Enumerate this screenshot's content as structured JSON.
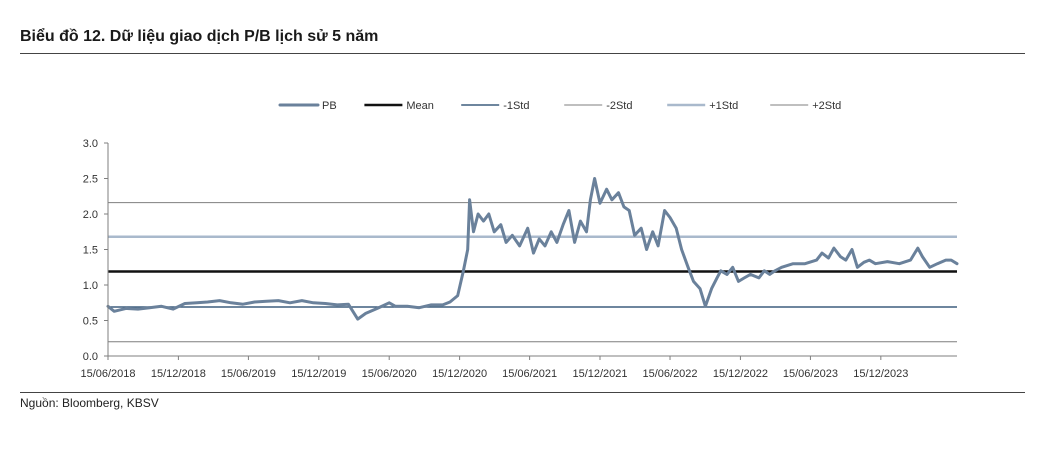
{
  "title": "Biểu đồ 12. Dữ liệu giao dịch P/B lịch sử 5 năm",
  "source": "Nguồn: Bloomberg, KBSV",
  "chart_data": {
    "type": "line",
    "title": "",
    "xlabel": "",
    "ylabel": "",
    "ylim": [
      0,
      3
    ],
    "yticks": [
      "0.0",
      "0.5",
      "1.0",
      "1.5",
      "2.0",
      "2.5",
      "3.0"
    ],
    "x_range": [
      "2018-06-15",
      "2024-06-30"
    ],
    "xticks": [
      "15/06/2018",
      "15/12/2018",
      "15/06/2019",
      "15/12/2019",
      "15/06/2020",
      "15/12/2020",
      "15/06/2021",
      "15/12/2021",
      "15/06/2022",
      "15/12/2022",
      "15/06/2023",
      "15/12/2023"
    ],
    "grid": false,
    "legend_position": "top",
    "legend": [
      "PB",
      "Mean",
      "-1Std",
      "-2Std",
      "+1Std",
      "+2Std"
    ],
    "series": [
      {
        "name": "PB",
        "color": "#6a819b",
        "x": [
          "2018-06-15",
          "2018-07-01",
          "2018-08-01",
          "2018-09-01",
          "2018-10-01",
          "2018-11-01",
          "2018-12-01",
          "2019-01-01",
          "2019-02-01",
          "2019-03-01",
          "2019-04-01",
          "2019-05-01",
          "2019-06-01",
          "2019-07-01",
          "2019-08-01",
          "2019-09-01",
          "2019-10-01",
          "2019-11-01",
          "2019-12-01",
          "2020-01-01",
          "2020-02-01",
          "2020-03-01",
          "2020-03-25",
          "2020-04-15",
          "2020-05-15",
          "2020-06-15",
          "2020-07-01",
          "2020-08-01",
          "2020-09-01",
          "2020-10-01",
          "2020-11-01",
          "2020-11-20",
          "2020-12-10",
          "2020-12-25",
          "2021-01-05",
          "2021-01-10",
          "2021-01-20",
          "2021-02-01",
          "2021-02-15",
          "2021-03-01",
          "2021-03-15",
          "2021-04-01",
          "2021-04-15",
          "2021-05-01",
          "2021-05-20",
          "2021-06-10",
          "2021-06-25",
          "2021-07-10",
          "2021-07-25",
          "2021-08-10",
          "2021-08-25",
          "2021-09-10",
          "2021-09-25",
          "2021-10-10",
          "2021-10-25",
          "2021-11-10",
          "2021-11-20",
          "2021-12-01",
          "2021-12-15",
          "2022-01-01",
          "2022-01-15",
          "2022-02-01",
          "2022-02-15",
          "2022-03-01",
          "2022-03-15",
          "2022-04-01",
          "2022-04-15",
          "2022-05-01",
          "2022-05-15",
          "2022-06-01",
          "2022-06-15",
          "2022-07-01",
          "2022-07-15",
          "2022-08-01",
          "2022-08-15",
          "2022-09-01",
          "2022-09-15",
          "2022-10-01",
          "2022-10-15",
          "2022-10-25",
          "2022-11-10",
          "2022-11-25",
          "2022-12-10",
          "2022-12-25",
          "2023-01-10",
          "2023-02-01",
          "2023-02-15",
          "2023-03-01",
          "2023-03-15",
          "2023-04-01",
          "2023-05-01",
          "2023-06-01",
          "2023-07-01",
          "2023-07-15",
          "2023-08-01",
          "2023-08-15",
          "2023-09-01",
          "2023-09-15",
          "2023-10-01",
          "2023-10-15",
          "2023-11-01",
          "2023-11-15",
          "2023-12-01",
          "2024-01-01",
          "2024-02-01",
          "2024-03-01",
          "2024-03-20",
          "2024-04-01",
          "2024-04-20",
          "2024-05-10",
          "2024-06-01",
          "2024-06-15",
          "2024-06-30"
        ],
        "values": [
          0.7,
          0.63,
          0.67,
          0.66,
          0.68,
          0.7,
          0.66,
          0.74,
          0.75,
          0.76,
          0.78,
          0.75,
          0.73,
          0.76,
          0.77,
          0.78,
          0.75,
          0.78,
          0.75,
          0.74,
          0.72,
          0.73,
          0.52,
          0.6,
          0.67,
          0.75,
          0.7,
          0.7,
          0.68,
          0.72,
          0.72,
          0.76,
          0.85,
          1.2,
          1.5,
          2.2,
          1.75,
          2.0,
          1.9,
          2.0,
          1.75,
          1.85,
          1.6,
          1.7,
          1.55,
          1.8,
          1.45,
          1.65,
          1.55,
          1.75,
          1.6,
          1.85,
          2.05,
          1.6,
          1.9,
          1.75,
          2.2,
          2.5,
          2.15,
          2.35,
          2.2,
          2.3,
          2.1,
          2.05,
          1.7,
          1.8,
          1.5,
          1.75,
          1.55,
          2.05,
          1.95,
          1.8,
          1.5,
          1.25,
          1.05,
          0.95,
          0.7,
          0.95,
          1.1,
          1.2,
          1.15,
          1.25,
          1.05,
          1.1,
          1.15,
          1.1,
          1.2,
          1.15,
          1.2,
          1.25,
          1.3,
          1.3,
          1.35,
          1.45,
          1.38,
          1.52,
          1.4,
          1.35,
          1.5,
          1.25,
          1.32,
          1.35,
          1.3,
          1.33,
          1.3,
          1.35,
          1.52,
          1.4,
          1.25,
          1.3,
          1.35,
          1.35,
          1.3
        ]
      },
      {
        "name": "Mean",
        "color": "#111111",
        "value": 1.19
      },
      {
        "name": "-1Std",
        "color": "#3f5f7e",
        "value": 0.69
      },
      {
        "name": "-2Std",
        "color": "#7f7f7f",
        "value": 0.2
      },
      {
        "name": "+1Std",
        "color": "#a9b9cc",
        "value": 1.68
      },
      {
        "name": "+2Std",
        "color": "#7f7f7f",
        "value": 2.16
      }
    ]
  }
}
